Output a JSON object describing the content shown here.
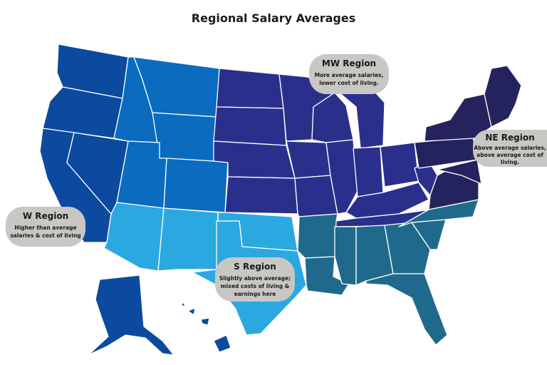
{
  "title": "Regional Salary Averages",
  "regions": {
    "w": {
      "heading": "W Region",
      "lines": [
        "Higher than average",
        "salaries & cost of living"
      ],
      "color": "#0b4a9e"
    },
    "mw": {
      "heading": "MW Region",
      "lines": [
        "More average salaries,",
        "lower cost of living."
      ],
      "color": "#2b2f8c"
    },
    "ne": {
      "heading": "NE Region",
      "lines": [
        "Above average salaries,",
        "above average cost of",
        "living."
      ],
      "color": "#25235e"
    },
    "s": {
      "heading": "S Region",
      "lines": [
        "Slightly above average;",
        "mixed costs of living &",
        "earnings here"
      ],
      "color": "#2ba8e0"
    }
  },
  "subregion_colors": {
    "mountain": "#0a6bbf",
    "southwest": "#2ba8e0",
    "southeast": "#1f6a8c"
  },
  "callout_color": "#c8c7c4"
}
